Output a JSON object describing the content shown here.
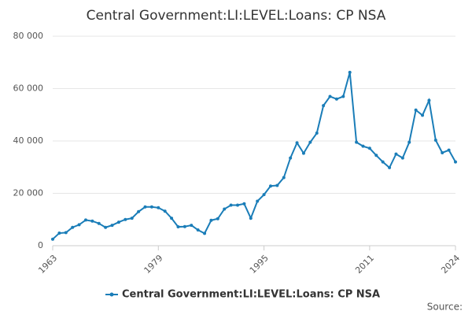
{
  "chart_data": {
    "type": "line",
    "title": "Central Government:LI:LEVEL:Loans: CP NSA",
    "x": [
      1963,
      1964,
      1965,
      1966,
      1967,
      1968,
      1969,
      1970,
      1971,
      1972,
      1973,
      1974,
      1975,
      1976,
      1977,
      1978,
      1979,
      1980,
      1981,
      1982,
      1983,
      1984,
      1985,
      1986,
      1987,
      1988,
      1989,
      1990,
      1991,
      1992,
      1993,
      1994,
      1995,
      1996,
      1997,
      1998,
      1999,
      2000,
      2001,
      2002,
      2003,
      2004,
      2005,
      2006,
      2007,
      2008,
      2009,
      2010,
      2011,
      2012,
      2013,
      2014,
      2015,
      2016,
      2017,
      2018,
      2019,
      2020,
      2021,
      2022,
      2023,
      2024
    ],
    "series": [
      {
        "name": "Central Government:LI:LEVEL:Loans: CP NSA",
        "color": "#1a7db8",
        "values": [
          2500,
          4800,
          5000,
          7000,
          8000,
          9800,
          9400,
          8500,
          7000,
          7800,
          9000,
          10000,
          10500,
          13000,
          14800,
          14800,
          14500,
          13200,
          10500,
          7200,
          7300,
          7800,
          6000,
          4700,
          9700,
          10300,
          14000,
          15500,
          15500,
          16000,
          10500,
          17000,
          19500,
          22800,
          23000,
          26000,
          33500,
          39300,
          35300,
          39500,
          43000,
          53500,
          57000,
          56000,
          57000,
          66200,
          39500,
          38000,
          37200,
          34500,
          32000,
          29800,
          35000,
          33500,
          39500,
          51800,
          49800,
          55500,
          40300,
          35500,
          36500,
          32000
        ]
      }
    ],
    "xlim": [
      1963,
      2024
    ],
    "xticks": [
      1963,
      1979,
      1995,
      2011,
      2024
    ],
    "ylim": [
      0,
      80000
    ],
    "yticks": [
      0,
      {
        "value": 20000,
        "label": "20 000"
      },
      {
        "value": 40000,
        "label": "40 000"
      },
      {
        "value": 60000,
        "label": "60 000"
      },
      {
        "value": 80000,
        "label": "80 000"
      }
    ],
    "grid": true,
    "legend": "bottom",
    "source": "Source:"
  }
}
